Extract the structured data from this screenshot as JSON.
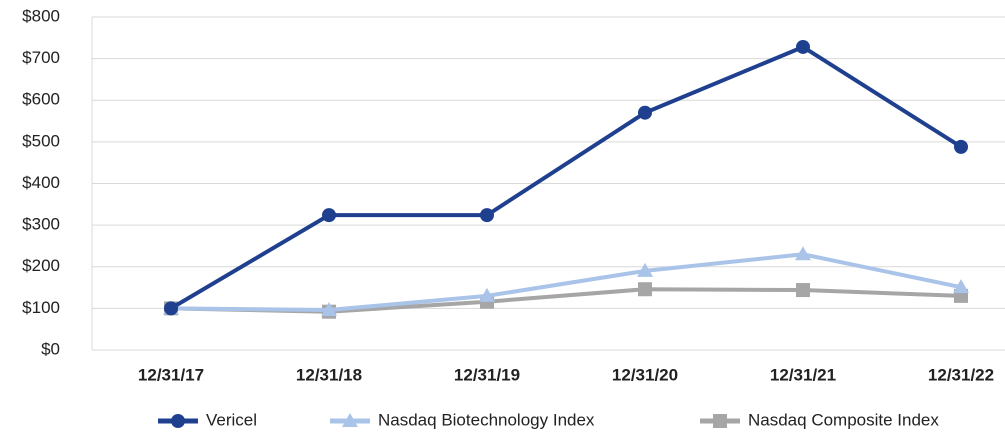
{
  "chart_data": {
    "type": "line",
    "categories": [
      "12/31/17",
      "12/31/18",
      "12/31/19",
      "12/31/20",
      "12/31/21",
      "12/31/22"
    ],
    "series": [
      {
        "name": "Vericel",
        "color": "#1f3f8f",
        "marker": "circle",
        "values": [
          100,
          324,
          324,
          570,
          728,
          488
        ]
      },
      {
        "name": "Nasdaq Biotechnology Index",
        "color": "#a9c4e8",
        "marker": "triangle",
        "values": [
          100,
          96,
          130,
          190,
          230,
          151
        ]
      },
      {
        "name": "Nasdaq Composite Index",
        "color": "#a6a6a6",
        "marker": "square",
        "values": [
          100,
          92,
          116,
          146,
          144,
          130
        ]
      }
    ],
    "ylim": [
      0,
      800
    ],
    "yticks": [
      {
        "value": 0,
        "label": "$0"
      },
      {
        "value": 100,
        "label": "$100"
      },
      {
        "value": 200,
        "label": "$200"
      },
      {
        "value": 300,
        "label": "$300"
      },
      {
        "value": 400,
        "label": "$400"
      },
      {
        "value": 500,
        "label": "$500"
      },
      {
        "value": 600,
        "label": "$600"
      },
      {
        "value": 700,
        "label": "$700"
      },
      {
        "value": 800,
        "label": "$800"
      }
    ],
    "grid": true,
    "legend": "bottom"
  }
}
